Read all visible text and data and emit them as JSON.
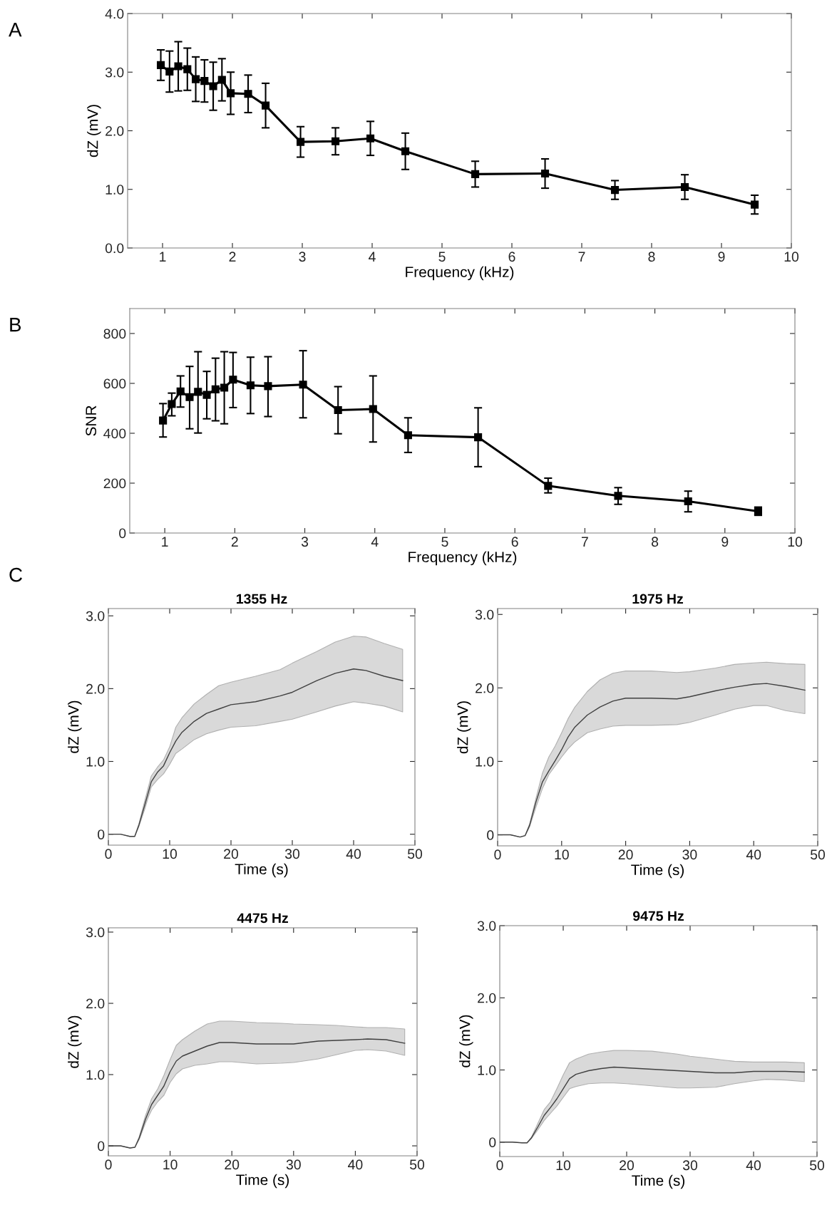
{
  "chart_data": [
    {
      "type": "line",
      "annotations": [
        "A"
      ],
      "xlabel": "Frequency (kHz)",
      "ylabel": "dZ (mV)",
      "marker": "square",
      "line_style": "solid",
      "xlim": [
        0.5,
        10
      ],
      "xticks": [
        1,
        2,
        3,
        4,
        5,
        6,
        7,
        8,
        9,
        10
      ],
      "ylim": [
        0,
        4
      ],
      "yticks": [
        {
          "value": 0,
          "label": "0.0"
        },
        {
          "value": 1,
          "label": "1.0"
        },
        {
          "value": 2,
          "label": "2.0"
        },
        {
          "value": 3,
          "label": "3.0"
        },
        {
          "value": 4,
          "label": "4.0"
        }
      ],
      "x": [
        0.975,
        1.1,
        1.225,
        1.355,
        1.475,
        1.6,
        1.725,
        1.85,
        1.975,
        2.225,
        2.475,
        2.975,
        3.475,
        3.975,
        4.475,
        5.475,
        6.475,
        7.475,
        8.475,
        9.475
      ],
      "series": [
        {
          "color": "#000000",
          "values": [
            3.12,
            3.01,
            3.1,
            3.05,
            2.88,
            2.85,
            2.76,
            2.87,
            2.64,
            2.63,
            2.43,
            1.81,
            1.82,
            1.87,
            1.65,
            1.26,
            1.27,
            0.99,
            1.04,
            0.74
          ],
          "errors": [
            0.26,
            0.35,
            0.42,
            0.36,
            0.38,
            0.36,
            0.41,
            0.36,
            0.36,
            0.32,
            0.38,
            0.26,
            0.23,
            0.29,
            0.31,
            0.22,
            0.25,
            0.16,
            0.21,
            0.16
          ]
        }
      ]
    },
    {
      "type": "line",
      "annotations": [
        "B"
      ],
      "xlabel": "Frequency (kHz)",
      "ylabel": "SNR",
      "marker": "square",
      "line_style": "solid",
      "xlim": [
        0.5,
        10
      ],
      "xticks": [
        1,
        2,
        3,
        4,
        5,
        6,
        7,
        8,
        9,
        10
      ],
      "ylim": [
        0,
        900
      ],
      "yticks": [
        0,
        200,
        400,
        600,
        800
      ],
      "x": [
        0.975,
        1.1,
        1.225,
        1.355,
        1.475,
        1.6,
        1.725,
        1.85,
        1.975,
        2.225,
        2.475,
        2.975,
        3.475,
        3.975,
        4.475,
        5.475,
        6.475,
        7.475,
        8.475,
        9.475
      ],
      "series": [
        {
          "color": "#000000",
          "values": [
            451,
            517,
            568,
            545,
            566,
            554,
            576,
            583,
            615,
            592,
            589,
            595,
            493,
            497,
            392,
            384,
            189,
            149,
            127,
            87
          ],
          "errors": [
            [
              385,
              519
            ],
            [
              470,
              561
            ],
            [
              505,
              630
            ],
            [
              418,
              668
            ],
            [
              401,
              727
            ],
            [
              458,
              648
            ],
            [
              450,
              701
            ],
            [
              438,
              727
            ],
            [
              503,
              724
            ],
            [
              479,
              705
            ],
            [
              467,
              707
            ],
            [
              462,
              731
            ],
            [
              398,
              587
            ],
            [
              365,
              630
            ],
            [
              323,
              462
            ],
            [
              266,
              502
            ],
            [
              161,
              220
            ],
            [
              115,
              182
            ],
            [
              85,
              168
            ],
            [
              71,
              104
            ]
          ]
        }
      ]
    },
    {
      "type": "line",
      "title": "1355 Hz",
      "annotations": [
        "C"
      ],
      "xlabel": "Time (s)",
      "ylabel": "dZ (mV)",
      "marker": "none",
      "line_style": "solid",
      "xlim": [
        0,
        50
      ],
      "xticks": [
        0,
        10,
        20,
        30,
        40,
        50
      ],
      "ylim": [
        -0.15,
        3.1
      ],
      "yticks": [
        0,
        {
          "value": 1,
          "label": "1.0"
        },
        {
          "value": 2,
          "label": "2.0"
        },
        {
          "value": 3,
          "label": "3.0"
        }
      ],
      "x": [
        0,
        2,
        3.5,
        4.3,
        5,
        6,
        7,
        8,
        9,
        10,
        11,
        12,
        14,
        16,
        18,
        20,
        24,
        28,
        30,
        34,
        37,
        40,
        42,
        45,
        48
      ],
      "series": [
        {
          "color": "#404040",
          "values": [
            0,
            0,
            -0.03,
            -0.03,
            0.13,
            0.42,
            0.72,
            0.85,
            0.94,
            1.12,
            1.28,
            1.4,
            1.55,
            1.66,
            1.72,
            1.78,
            1.82,
            1.9,
            1.95,
            2.11,
            2.21,
            2.27,
            2.25,
            2.17,
            2.11
          ],
          "upper": [
            0,
            0,
            -0.03,
            -0.03,
            0.15,
            0.48,
            0.8,
            0.92,
            1.02,
            1.2,
            1.47,
            1.6,
            1.79,
            1.92,
            2.04,
            2.09,
            2.17,
            2.26,
            2.35,
            2.51,
            2.64,
            2.72,
            2.71,
            2.62,
            2.54
          ],
          "lower": [
            0,
            0,
            -0.03,
            -0.03,
            0.11,
            0.36,
            0.65,
            0.75,
            0.83,
            0.96,
            1.11,
            1.17,
            1.3,
            1.38,
            1.43,
            1.47,
            1.49,
            1.55,
            1.58,
            1.68,
            1.76,
            1.82,
            1.8,
            1.76,
            1.68
          ]
        }
      ]
    },
    {
      "type": "line",
      "title": "1975 Hz",
      "xlabel": "Time (s)",
      "ylabel": "dZ (mV)",
      "marker": "none",
      "line_style": "solid",
      "xlim": [
        0,
        50
      ],
      "xticks": [
        0,
        10,
        20,
        30,
        40,
        50
      ],
      "ylim": [
        -0.15,
        3.08
      ],
      "yticks": [
        0,
        {
          "value": 1,
          "label": "1.0"
        },
        {
          "value": 2,
          "label": "2.0"
        },
        {
          "value": 3,
          "label": "3.0"
        }
      ],
      "x": [
        0,
        2,
        3.5,
        4.3,
        5,
        6,
        7,
        8,
        9,
        10,
        11,
        12,
        14,
        16,
        18,
        20,
        24,
        28,
        30,
        34,
        37,
        40,
        42,
        45,
        48
      ],
      "series": [
        {
          "color": "#404040",
          "values": [
            0,
            0,
            -0.03,
            -0.01,
            0.13,
            0.45,
            0.72,
            0.87,
            1.01,
            1.16,
            1.33,
            1.46,
            1.63,
            1.74,
            1.82,
            1.86,
            1.86,
            1.85,
            1.88,
            1.96,
            2.01,
            2.05,
            2.06,
            2.02,
            1.97
          ],
          "upper": [
            0,
            0,
            -0.03,
            -0.01,
            0.15,
            0.5,
            0.84,
            1.06,
            1.21,
            1.39,
            1.58,
            1.73,
            1.95,
            2.11,
            2.2,
            2.23,
            2.23,
            2.21,
            2.22,
            2.27,
            2.32,
            2.34,
            2.35,
            2.33,
            2.32
          ],
          "lower": [
            0,
            0,
            -0.03,
            -0.01,
            0.11,
            0.38,
            0.63,
            0.82,
            0.94,
            1.06,
            1.17,
            1.26,
            1.39,
            1.44,
            1.48,
            1.49,
            1.49,
            1.5,
            1.53,
            1.63,
            1.71,
            1.76,
            1.76,
            1.69,
            1.65
          ]
        }
      ]
    },
    {
      "type": "line",
      "title": "4475 Hz",
      "xlabel": "Time (s)",
      "ylabel": "dZ (mV)",
      "marker": "none",
      "line_style": "solid",
      "xlim": [
        0,
        50
      ],
      "xticks": [
        0,
        10,
        20,
        30,
        40,
        50
      ],
      "ylim": [
        -0.14,
        3.06
      ],
      "yticks": [
        0,
        {
          "value": 1,
          "label": "1.0"
        },
        {
          "value": 2,
          "label": "2.0"
        },
        {
          "value": 3,
          "label": "3.0"
        }
      ],
      "x": [
        0,
        2,
        3.5,
        4.3,
        5,
        6,
        7,
        8,
        9,
        10,
        11,
        12,
        14,
        16,
        18,
        20,
        24,
        28,
        30,
        34,
        37,
        40,
        42,
        45,
        48
      ],
      "series": [
        {
          "color": "#404040",
          "values": [
            0,
            0,
            -0.03,
            -0.02,
            0.11,
            0.37,
            0.58,
            0.71,
            0.84,
            1.04,
            1.19,
            1.26,
            1.33,
            1.4,
            1.45,
            1.45,
            1.43,
            1.43,
            1.43,
            1.47,
            1.48,
            1.49,
            1.5,
            1.49,
            1.44
          ],
          "upper": [
            0,
            0,
            -0.03,
            -0.02,
            0.13,
            0.42,
            0.66,
            0.8,
            0.99,
            1.21,
            1.41,
            1.49,
            1.61,
            1.71,
            1.75,
            1.75,
            1.73,
            1.72,
            1.71,
            1.7,
            1.69,
            1.67,
            1.66,
            1.66,
            1.64
          ],
          "lower": [
            0,
            0,
            -0.03,
            -0.02,
            0.09,
            0.32,
            0.5,
            0.62,
            0.71,
            0.89,
            1.01,
            1.08,
            1.13,
            1.15,
            1.18,
            1.18,
            1.15,
            1.16,
            1.17,
            1.22,
            1.28,
            1.34,
            1.35,
            1.33,
            1.27
          ]
        }
      ]
    },
    {
      "type": "line",
      "title": "9475 Hz",
      "xlabel": "Time (s)",
      "ylabel": "dZ (mV)",
      "marker": "none",
      "line_style": "solid",
      "xlim": [
        0,
        50
      ],
      "xticks": [
        0,
        10,
        20,
        30,
        40,
        50
      ],
      "ylim": [
        -0.2,
        3.0
      ],
      "yticks": [
        0,
        {
          "value": 1,
          "label": "1.0"
        },
        {
          "value": 2,
          "label": "2.0"
        },
        {
          "value": 3,
          "label": "3.0"
        }
      ],
      "x": [
        0,
        2,
        3.5,
        4.3,
        5,
        6,
        7,
        8,
        9,
        10,
        11,
        12,
        14,
        16,
        18,
        20,
        24,
        28,
        30,
        34,
        37,
        40,
        42,
        45,
        48
      ],
      "series": [
        {
          "color": "#404040",
          "values": [
            0,
            0,
            -0.01,
            -0.01,
            0.06,
            0.21,
            0.37,
            0.48,
            0.6,
            0.74,
            0.88,
            0.94,
            0.99,
            1.02,
            1.04,
            1.03,
            1.01,
            0.99,
            0.98,
            0.96,
            0.96,
            0.98,
            0.98,
            0.98,
            0.97
          ],
          "upper": [
            0,
            0,
            -0.01,
            -0.01,
            0.07,
            0.26,
            0.45,
            0.56,
            0.74,
            0.93,
            1.1,
            1.15,
            1.22,
            1.25,
            1.27,
            1.27,
            1.26,
            1.22,
            1.19,
            1.15,
            1.12,
            1.11,
            1.11,
            1.11,
            1.1
          ],
          "lower": [
            0,
            0,
            -0.01,
            -0.01,
            0.05,
            0.17,
            0.3,
            0.4,
            0.5,
            0.62,
            0.74,
            0.77,
            0.81,
            0.82,
            0.82,
            0.81,
            0.78,
            0.75,
            0.75,
            0.76,
            0.81,
            0.85,
            0.87,
            0.86,
            0.84
          ]
        }
      ]
    }
  ]
}
